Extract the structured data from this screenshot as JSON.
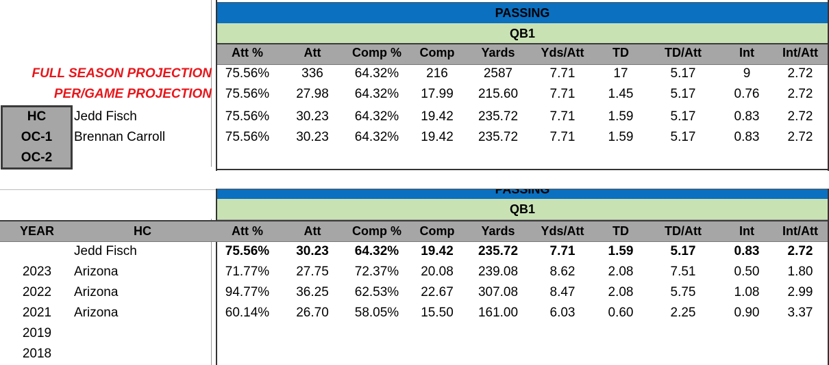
{
  "colors": {
    "blue": "#0b70c0",
    "green": "#c9e2b4",
    "grey": "#a6a6a6",
    "red": "#e8161b"
  },
  "top": {
    "section_title": "PASSING",
    "position": "QB1",
    "columns": [
      "Att %",
      "Att",
      "Comp %",
      "Comp",
      "Yards",
      "Yds/Att",
      "TD",
      "TD/Att",
      "Int",
      "Int/Att"
    ],
    "full_season_label": "FULL SEASON PROJECTION",
    "per_game_label": "PER/GAME PROJECTION",
    "rows": [
      [
        "75.56%",
        "336",
        "64.32%",
        "216",
        "2587",
        "7.71",
        "17",
        "5.17",
        "9",
        "2.72"
      ],
      [
        "75.56%",
        "27.98",
        "64.32%",
        "17.99",
        "215.60",
        "7.71",
        "1.45",
        "5.17",
        "0.76",
        "2.72"
      ],
      [
        "75.56%",
        "30.23",
        "64.32%",
        "19.42",
        "235.72",
        "7.71",
        "1.59",
        "5.17",
        "0.83",
        "2.72"
      ],
      [
        "75.56%",
        "30.23",
        "64.32%",
        "19.42",
        "235.72",
        "7.71",
        "1.59",
        "5.17",
        "0.83",
        "2.72"
      ]
    ],
    "staff": [
      {
        "role": "HC",
        "name": "Jedd Fisch"
      },
      {
        "role": "OC-1",
        "name": "Brennan Carroll"
      },
      {
        "role": "OC-2",
        "name": ""
      }
    ]
  },
  "bottom": {
    "section_title": "PASSING",
    "position": "QB1",
    "year_header": "YEAR",
    "hc_header": "HC",
    "columns": [
      "Att %",
      "Att",
      "Comp %",
      "Comp",
      "Yards",
      "Yds/Att",
      "TD",
      "TD/Att",
      "Int",
      "Int/Att"
    ],
    "rows": [
      {
        "year": "",
        "hc": "Jedd Fisch",
        "values": [
          "75.56%",
          "30.23",
          "64.32%",
          "19.42",
          "235.72",
          "7.71",
          "1.59",
          "5.17",
          "0.83",
          "2.72"
        ],
        "bold": true
      },
      {
        "year": "2023",
        "hc": "Arizona",
        "values": [
          "71.77%",
          "27.75",
          "72.37%",
          "20.08",
          "239.08",
          "8.62",
          "2.08",
          "7.51",
          "0.50",
          "1.80"
        ],
        "bold": false
      },
      {
        "year": "2022",
        "hc": "Arizona",
        "values": [
          "94.77%",
          "36.25",
          "62.53%",
          "22.67",
          "307.08",
          "8.47",
          "2.08",
          "5.75",
          "1.08",
          "2.99"
        ],
        "bold": false
      },
      {
        "year": "2021",
        "hc": "Arizona",
        "values": [
          "60.14%",
          "26.70",
          "58.05%",
          "15.50",
          "161.00",
          "6.03",
          "0.60",
          "2.25",
          "0.90",
          "3.37"
        ],
        "bold": false
      },
      {
        "year": "2019",
        "hc": "",
        "values": [],
        "bold": false
      },
      {
        "year": "2018",
        "hc": "",
        "values": [],
        "bold": false
      }
    ]
  }
}
